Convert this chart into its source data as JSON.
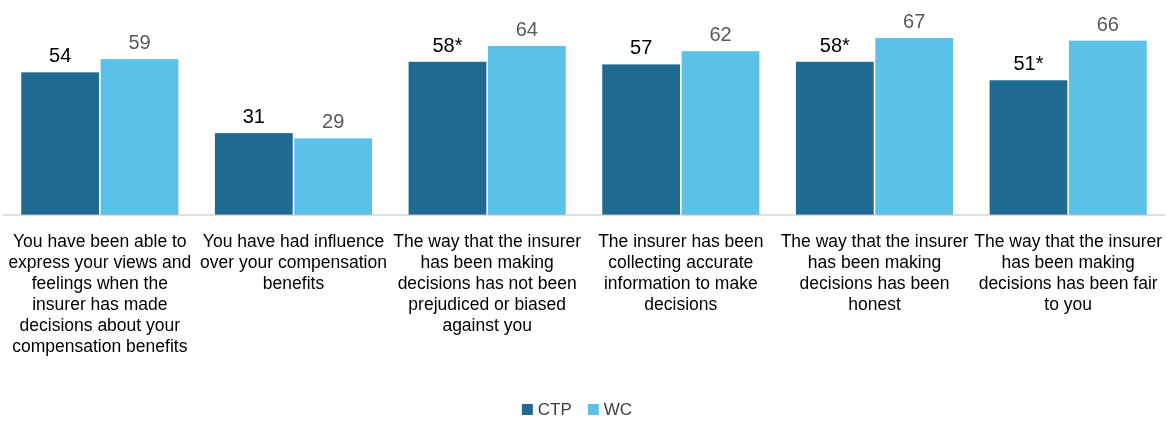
{
  "chart_data": {
    "type": "bar",
    "categories": [
      "You have been able to express your views and feelings when the insurer has made decisions about your compensation benefits",
      "You have had influence over your compensation benefits",
      "The way that the insurer has been making decisions has not been prejudiced or biased against you",
      "The insurer has been collecting accurate information to make decisions",
      "The way that the insurer has been making decisions has been honest",
      "The way that the insurer has been making decisions has been fair to you"
    ],
    "series": [
      {
        "name": "CTP",
        "color": "#1f6a91",
        "values": [
          54,
          31,
          58,
          57,
          58,
          51
        ],
        "value_labels": [
          "54",
          "31",
          "58*",
          "57",
          "58*",
          "51*"
        ]
      },
      {
        "name": "WC",
        "color": "#5bc1e8",
        "values": [
          59,
          29,
          64,
          62,
          67,
          66
        ],
        "value_labels": [
          "59",
          "29",
          "64",
          "62",
          "67",
          "66"
        ]
      }
    ],
    "legend": "bottom",
    "relative": false
  }
}
